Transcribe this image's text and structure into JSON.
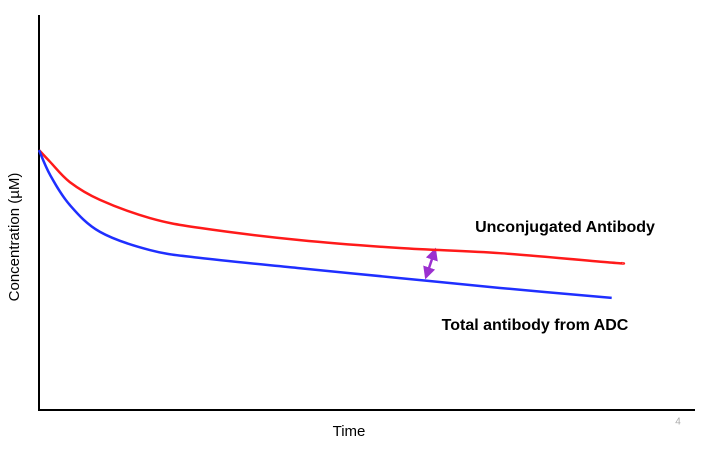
{
  "chart_data": {
    "type": "line",
    "x_label": "Time",
    "y_label": "Concentration (µM)",
    "x": [
      0,
      1.7,
      4.7,
      9.3,
      16.9,
      24.5,
      39.8,
      55,
      70.3,
      87.3,
      88.9
    ],
    "series": [
      {
        "name": "Unconjugated Antibody",
        "color": "#ff1a1a",
        "values": [
          65.8,
          62.8,
          57.7,
          53.2,
          48.6,
          46.1,
          43.0,
          41.0,
          39.7,
          37.3,
          37.2
        ]
      },
      {
        "name": "Total antibody from ADC",
        "color": "#1f2fff",
        "values": [
          65.8,
          59.5,
          51.9,
          45.1,
          40.5,
          38.5,
          35.9,
          33.4,
          30.9,
          28.4,
          null
        ]
      }
    ],
    "xlim": [
      0,
      100
    ],
    "ylim": [
      0,
      100
    ],
    "page_number": "4"
  }
}
